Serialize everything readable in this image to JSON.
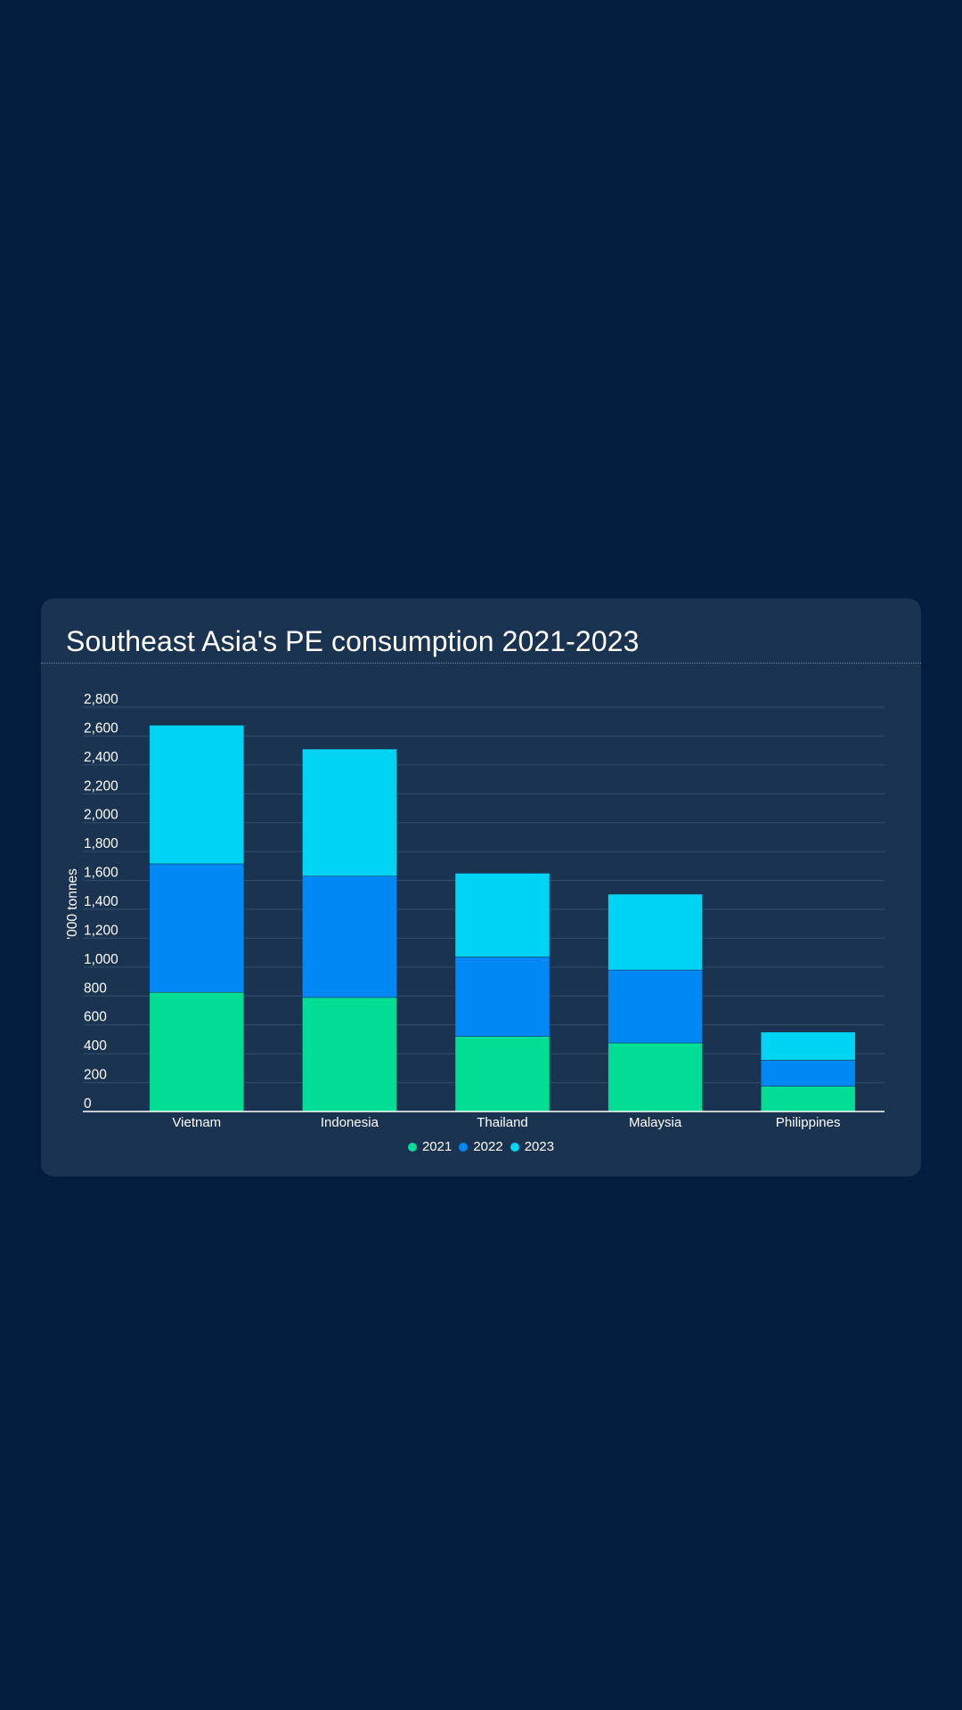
{
  "page": {
    "background": "#011e3f"
  },
  "card": {
    "background": "#1a3350",
    "divider_color": "#1aa6d6"
  },
  "chart_data": {
    "type": "bar",
    "stacked": true,
    "title": "Southeast Asia's PE consumption 2021-2023",
    "xlabel": "",
    "ylabel": "'000 tonnes",
    "ylim": [
      0,
      2800
    ],
    "ytick_step": 200,
    "yticks": [
      "0",
      "200",
      "400",
      "600",
      "800",
      "1,000",
      "1,200",
      "1,400",
      "1,600",
      "1,800",
      "2,000",
      "2,200",
      "2,400",
      "2,600",
      "2,800"
    ],
    "grid": true,
    "legend_position": "bottom-center",
    "categories": [
      "Vietnam",
      "Indonesia",
      "Thailand",
      "Malaysia",
      "Philippines"
    ],
    "series": [
      {
        "name": "2021",
        "color": "#00de96",
        "values": [
          825,
          790,
          520,
          475,
          175
        ]
      },
      {
        "name": "2022",
        "color": "#0088f5",
        "values": [
          890,
          840,
          550,
          505,
          180
        ]
      },
      {
        "name": "2023",
        "color": "#00d4f5",
        "values": [
          960,
          880,
          580,
          525,
          195
        ]
      }
    ]
  }
}
